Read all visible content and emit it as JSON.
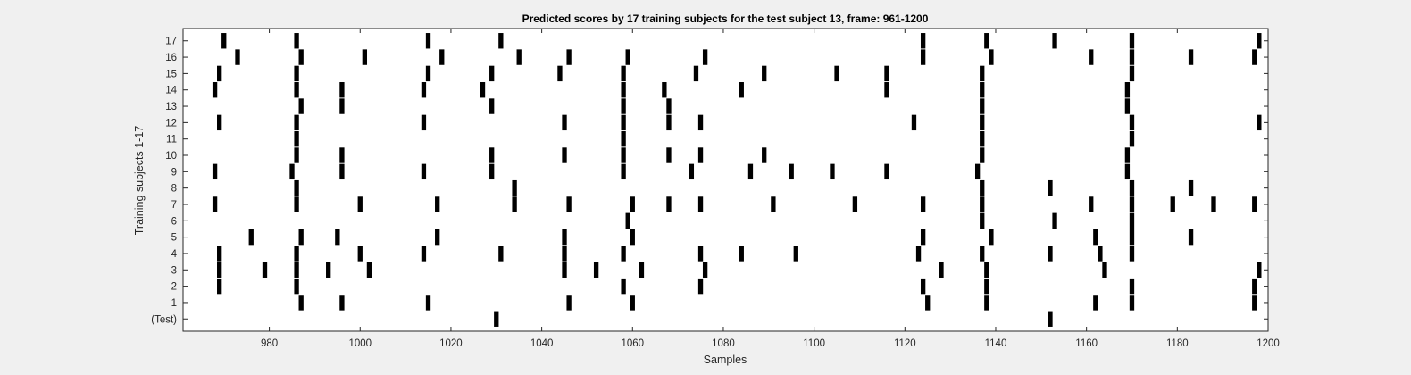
{
  "chart_data": {
    "type": "scatter",
    "title": "Predicted scores by 17 training subjects for the test subject 13, frame: 961-1200",
    "xlabel": "Samples",
    "ylabel": "Training subjects 1-17",
    "xlim": [
      961,
      1200
    ],
    "x_ticks": [
      980,
      1000,
      1020,
      1040,
      1060,
      1080,
      1100,
      1120,
      1140,
      1160,
      1180,
      1200
    ],
    "y_categories": [
      "(Test)",
      "1",
      "2",
      "3",
      "4",
      "5",
      "6",
      "7",
      "8",
      "9",
      "10",
      "11",
      "12",
      "13",
      "14",
      "15",
      "16",
      "17"
    ],
    "grid": false,
    "mark_color": "#000000",
    "series": [
      {
        "row": 0,
        "x": [
          1030,
          1152
        ]
      },
      {
        "row": 1,
        "x": [
          987,
          996,
          1015,
          1046,
          1060,
          1125,
          1138,
          1162,
          1170,
          1197
        ]
      },
      {
        "row": 2,
        "x": [
          969,
          986,
          1058,
          1075,
          1124,
          1138,
          1170,
          1197
        ]
      },
      {
        "row": 3,
        "x": [
          969,
          979,
          986,
          993,
          1002,
          1045,
          1052,
          1062,
          1076,
          1128,
          1138,
          1164,
          1198
        ]
      },
      {
        "row": 4,
        "x": [
          969,
          986,
          1000,
          1014,
          1031,
          1045,
          1058,
          1075,
          1084,
          1096,
          1123,
          1137,
          1152,
          1163,
          1170
        ]
      },
      {
        "row": 5,
        "x": [
          976,
          987,
          995,
          1017,
          1045,
          1060,
          1124,
          1139,
          1162,
          1170,
          1183
        ]
      },
      {
        "row": 6,
        "x": [
          1059,
          1137,
          1153,
          1170
        ]
      },
      {
        "row": 7,
        "x": [
          968,
          986,
          1000,
          1017,
          1034,
          1046,
          1060,
          1068,
          1075,
          1091,
          1109,
          1124,
          1137,
          1161,
          1170,
          1179,
          1188,
          1197
        ]
      },
      {
        "row": 8,
        "x": [
          986,
          1034,
          1137,
          1152,
          1170,
          1183
        ]
      },
      {
        "row": 9,
        "x": [
          968,
          985,
          996,
          1014,
          1029,
          1058,
          1073,
          1086,
          1095,
          1104,
          1116,
          1136,
          1169
        ]
      },
      {
        "row": 10,
        "x": [
          986,
          996,
          1029,
          1045,
          1058,
          1068,
          1075,
          1089,
          1137,
          1169
        ]
      },
      {
        "row": 11,
        "x": [
          986,
          1058,
          1137,
          1170
        ]
      },
      {
        "row": 12,
        "x": [
          969,
          986,
          1014,
          1045,
          1058,
          1068,
          1075,
          1122,
          1137,
          1170,
          1198
        ]
      },
      {
        "row": 13,
        "x": [
          987,
          996,
          1029,
          1058,
          1068,
          1137,
          1169
        ]
      },
      {
        "row": 14,
        "x": [
          968,
          986,
          996,
          1014,
          1027,
          1058,
          1067,
          1084,
          1116,
          1137,
          1169
        ]
      },
      {
        "row": 15,
        "x": [
          969,
          986,
          1015,
          1029,
          1044,
          1058,
          1074,
          1089,
          1105,
          1116,
          1137,
          1170
        ]
      },
      {
        "row": 16,
        "x": [
          973,
          987,
          1001,
          1018,
          1035,
          1046,
          1059,
          1076,
          1124,
          1139,
          1161,
          1170,
          1183,
          1197
        ]
      },
      {
        "row": 17,
        "x": [
          970,
          986,
          1015,
          1031,
          1124,
          1138,
          1153,
          1170,
          1198
        ]
      }
    ]
  }
}
